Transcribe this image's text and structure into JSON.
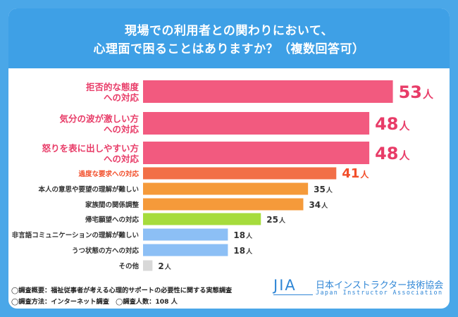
{
  "header": {
    "title_line1": "現場での利用者との関わりにおいて、",
    "title_line2": "心理面で困ることはありますか？（複数回答可）"
  },
  "chart_data": {
    "type": "bar",
    "orientation": "horizontal",
    "unit": "人",
    "categories": [
      [
        "拒否的な態度",
        "への対応"
      ],
      [
        "気分の波が激しい方",
        "への対応"
      ],
      [
        "怒りを表に出しやすい方",
        "への対応"
      ],
      [
        "過度な要求への対応"
      ],
      [
        "本人の意思や要望の理解が難しい"
      ],
      [
        "家族間の関係調整"
      ],
      [
        "帰宅願望への対応"
      ],
      [
        "非言語コミュニケーションの理解が難しい"
      ],
      [
        "うつ状態の方への対応"
      ],
      [
        "その他"
      ]
    ],
    "values": [
      53,
      48,
      48,
      41,
      35,
      34,
      25,
      18,
      18,
      2
    ],
    "colors": [
      "#f25a7f",
      "#f25a7f",
      "#f25a7f",
      "#f26f47",
      "#f59a3a",
      "#f59a3a",
      "#a6dc3c",
      "#8cbff5",
      "#8cbff5",
      "#d8d8d8"
    ],
    "label_colors": [
      "#e83c68",
      "#e83c68",
      "#e83c68",
      "#f24e2a",
      "#333333",
      "#333333",
      "#333333",
      "#333333",
      "#333333",
      "#333333"
    ]
  },
  "footer": {
    "note1": "◯調査概要：福祉従事者が考える心理的サポートの必要性に関する実態調査",
    "note2": "◯調査方法：インターネット調査　◯調査人数：108 人"
  },
  "logo": {
    "abbr": "JIA",
    "name_ja": "日本インストラクター技術協会",
    "name_en": "Japan Instructor Association"
  }
}
